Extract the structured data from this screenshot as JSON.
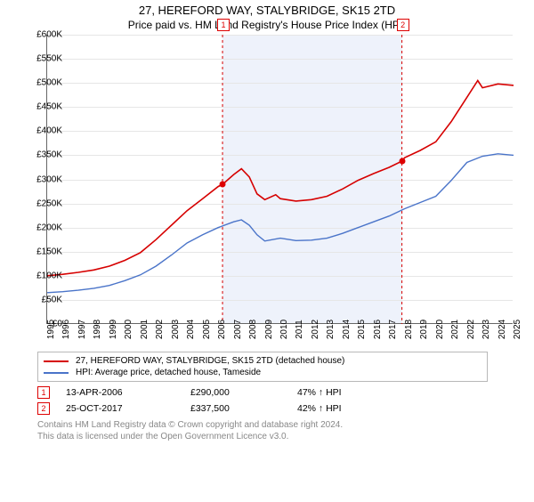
{
  "title": "27, HEREFORD WAY, STALYBRIDGE, SK15 2TD",
  "subtitle": "Price paid vs. HM Land Registry's House Price Index (HPI)",
  "chart": {
    "type": "line",
    "background_color": "#ffffff",
    "grid_color": "#e6e6e6",
    "shaded_band_color": "#eef2fb",
    "ylim": [
      0,
      600000
    ],
    "ytick_step": 50000,
    "ytick_labels": [
      "£0",
      "£50K",
      "£100K",
      "£150K",
      "£200K",
      "£250K",
      "£300K",
      "£350K",
      "£400K",
      "£450K",
      "£500K",
      "£550K",
      "£600K"
    ],
    "xlim": [
      1995,
      2025
    ],
    "xticks": [
      1995,
      1996,
      1997,
      1998,
      1999,
      2000,
      2001,
      2002,
      2003,
      2004,
      2005,
      2006,
      2007,
      2008,
      2009,
      2010,
      2011,
      2012,
      2013,
      2014,
      2015,
      2016,
      2017,
      2018,
      2019,
      2020,
      2021,
      2022,
      2023,
      2024,
      2025
    ],
    "series": [
      {
        "name": "27, HEREFORD WAY, STALYBRIDGE, SK15 2TD (detached house)",
        "color": "#d60000",
        "line_width": 1.6,
        "data": [
          [
            1995,
            100000
          ],
          [
            1996,
            103000
          ],
          [
            1997,
            107000
          ],
          [
            1998,
            112000
          ],
          [
            1999,
            120000
          ],
          [
            2000,
            132000
          ],
          [
            2001,
            148000
          ],
          [
            2002,
            175000
          ],
          [
            2003,
            205000
          ],
          [
            2004,
            235000
          ],
          [
            2005,
            260000
          ],
          [
            2006,
            285000
          ],
          [
            2006.3,
            290000
          ],
          [
            2007,
            310000
          ],
          [
            2007.5,
            322000
          ],
          [
            2008,
            305000
          ],
          [
            2008.5,
            270000
          ],
          [
            2009,
            258000
          ],
          [
            2009.7,
            268000
          ],
          [
            2010,
            260000
          ],
          [
            2011,
            255000
          ],
          [
            2012,
            258000
          ],
          [
            2013,
            265000
          ],
          [
            2014,
            280000
          ],
          [
            2015,
            298000
          ],
          [
            2016,
            312000
          ],
          [
            2017,
            325000
          ],
          [
            2017.8,
            337500
          ],
          [
            2018,
            345000
          ],
          [
            2019,
            360000
          ],
          [
            2020,
            378000
          ],
          [
            2021,
            420000
          ],
          [
            2022,
            470000
          ],
          [
            2022.7,
            505000
          ],
          [
            2023,
            490000
          ],
          [
            2024,
            498000
          ],
          [
            2025,
            495000
          ]
        ]
      },
      {
        "name": "HPI: Average price, detached house, Tameside",
        "color": "#4a74c9",
        "line_width": 1.4,
        "data": [
          [
            1995,
            65000
          ],
          [
            1996,
            67000
          ],
          [
            1997,
            70000
          ],
          [
            1998,
            74000
          ],
          [
            1999,
            80000
          ],
          [
            2000,
            90000
          ],
          [
            2001,
            102000
          ],
          [
            2002,
            120000
          ],
          [
            2003,
            143000
          ],
          [
            2004,
            168000
          ],
          [
            2005,
            185000
          ],
          [
            2006,
            200000
          ],
          [
            2007,
            212000
          ],
          [
            2007.5,
            216000
          ],
          [
            2008,
            205000
          ],
          [
            2008.5,
            185000
          ],
          [
            2009,
            172000
          ],
          [
            2010,
            178000
          ],
          [
            2011,
            173000
          ],
          [
            2012,
            174000
          ],
          [
            2013,
            178000
          ],
          [
            2014,
            188000
          ],
          [
            2015,
            200000
          ],
          [
            2016,
            212000
          ],
          [
            2017,
            224000
          ],
          [
            2018,
            239000
          ],
          [
            2019,
            252000
          ],
          [
            2020,
            265000
          ],
          [
            2021,
            298000
          ],
          [
            2022,
            335000
          ],
          [
            2023,
            348000
          ],
          [
            2024,
            353000
          ],
          [
            2025,
            350000
          ]
        ]
      }
    ],
    "markers": [
      {
        "id": "1",
        "x": 2006.28,
        "y": 290000,
        "dashed_line_color": "#d60000"
      },
      {
        "id": "2",
        "x": 2017.82,
        "y": 337500,
        "dashed_line_color": "#d60000"
      }
    ]
  },
  "legend": {
    "items": [
      {
        "label": "27, HEREFORD WAY, STALYBRIDGE, SK15 2TD (detached house)",
        "color": "#d60000"
      },
      {
        "label": "HPI: Average price, detached house, Tameside",
        "color": "#4a74c9"
      }
    ]
  },
  "events": [
    {
      "id": "1",
      "date": "13-APR-2006",
      "price": "£290,000",
      "pct": "47% ↑ HPI"
    },
    {
      "id": "2",
      "date": "25-OCT-2017",
      "price": "£337,500",
      "pct": "42% ↑ HPI"
    }
  ],
  "copyright_line1": "Contains HM Land Registry data © Crown copyright and database right 2024.",
  "copyright_line2": "This data is licensed under the Open Government Licence v3.0."
}
